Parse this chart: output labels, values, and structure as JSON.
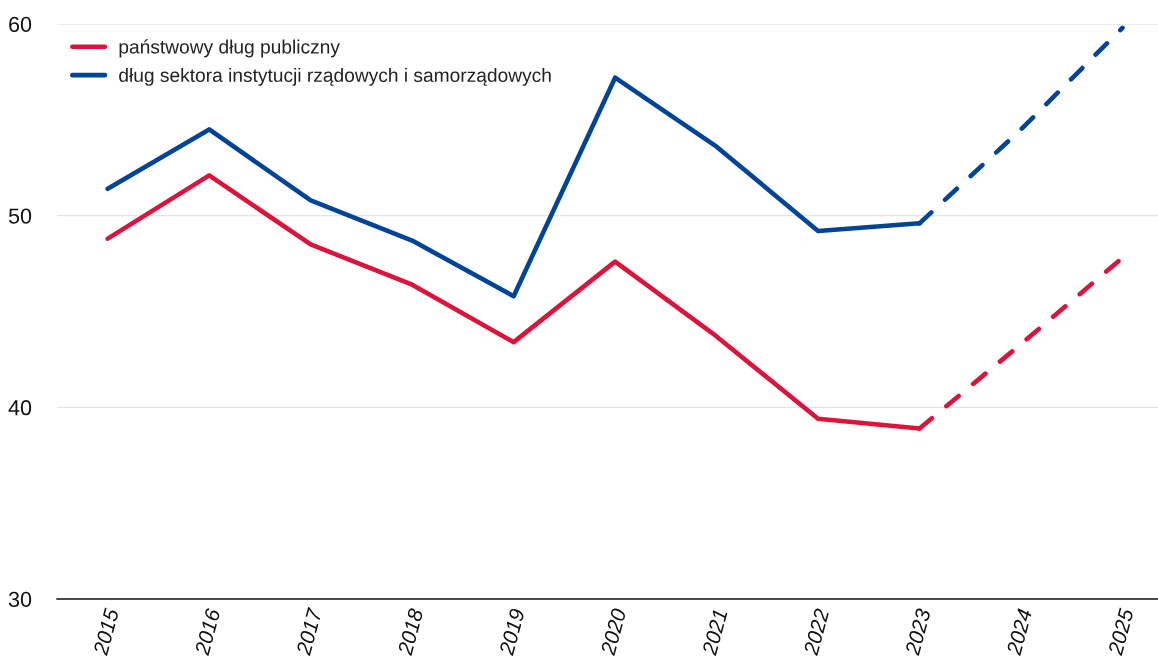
{
  "chart_data": {
    "type": "line",
    "categories": [
      "2015",
      "2016",
      "2017",
      "2018",
      "2019",
      "2020",
      "2021",
      "2022",
      "2023",
      "2024",
      "2025"
    ],
    "series": [
      {
        "name": "państwowy dług publiczny",
        "color": "#dc143c",
        "values": [
          48.8,
          52.1,
          48.5,
          46.4,
          43.4,
          47.6,
          43.7,
          39.4,
          38.9,
          null,
          null
        ]
      },
      {
        "name": "dług sektora instytucji rządowych i samorządowych",
        "color": "#00449a",
        "values": [
          51.4,
          54.5,
          50.8,
          48.7,
          45.8,
          57.2,
          53.6,
          49.2,
          49.6,
          null,
          null
        ]
      },
      {
        "color": "#dc143c",
        "line_style": "dashed",
        "values": [
          null,
          null,
          null,
          null,
          null,
          null,
          null,
          null,
          38.9,
          43.3,
          47.8
        ]
      },
      {
        "color": "#00449a",
        "line_style": "dashed",
        "values": [
          null,
          null,
          null,
          null,
          null,
          null,
          null,
          null,
          49.6,
          54.5,
          59.8
        ]
      }
    ],
    "ylim": [
      30,
      60
    ],
    "yticks": [
      30,
      40,
      50,
      60
    ],
    "grid": "y",
    "legend": "top left",
    "line_style": "solid"
  }
}
